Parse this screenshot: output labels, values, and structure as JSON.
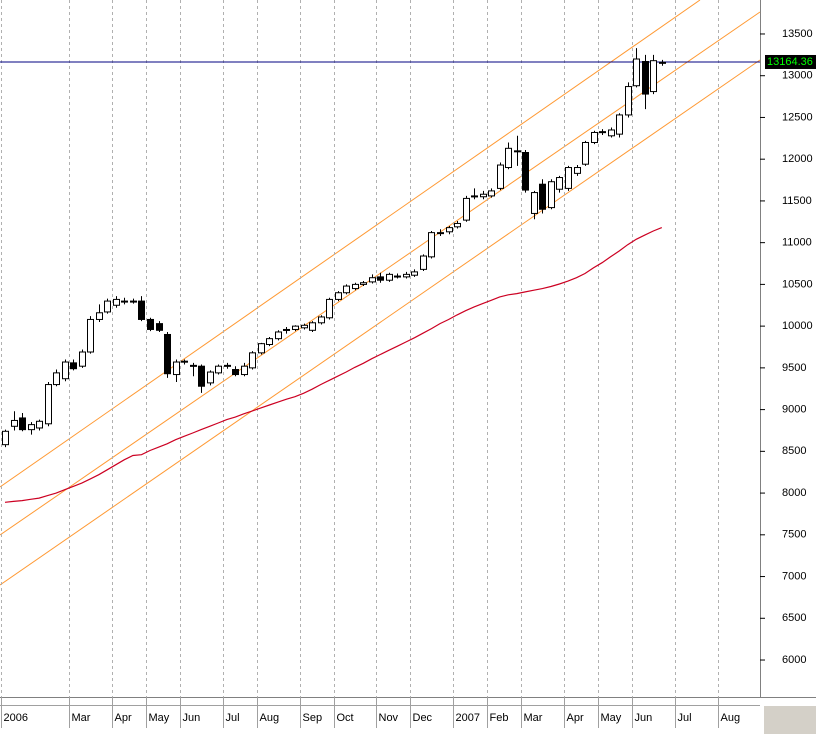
{
  "chart_data": {
    "type": "candlestick",
    "categories": [
      "2006",
      null,
      null,
      null,
      null,
      null,
      null,
      null,
      "Mar",
      null,
      null,
      null,
      null,
      "Apr",
      null,
      null,
      null,
      "May",
      null,
      null,
      null,
      "Jun",
      null,
      null,
      null,
      null,
      "Jul",
      null,
      null,
      null,
      "Aug",
      null,
      null,
      null,
      null,
      "Sep",
      null,
      null,
      null,
      "Oct",
      null,
      null,
      null,
      null,
      "Nov",
      null,
      null,
      null,
      "Dec",
      null,
      null,
      null,
      null,
      "2007",
      null,
      null,
      null,
      "Feb",
      null,
      null,
      null,
      "Mar",
      null,
      null,
      null,
      null,
      "Apr",
      null,
      null,
      null,
      "May",
      null,
      null,
      null,
      "Jun",
      null,
      null,
      null,
      null,
      "Jul",
      null,
      null,
      null,
      null,
      "Aug",
      null,
      null,
      null,
      null
    ],
    "open": [
      8580,
      8800,
      8900,
      8760,
      8780,
      8830,
      9300,
      9370,
      9560,
      9520,
      9690,
      10080,
      10170,
      10250,
      10290,
      10300,
      10300,
      10080,
      10030,
      9900,
      9420,
      9570,
      9520,
      9520,
      9320,
      9440,
      9520,
      9480,
      9420,
      9500,
      9680,
      9780,
      9850,
      9950,
      9960,
      9980,
      9950,
      10040,
      10100,
      10320,
      10400,
      10450,
      10500,
      10530,
      10590,
      10550,
      10600,
      10590,
      10610,
      10680,
      10830,
      11120,
      11130,
      11190,
      11270,
      11560,
      11550,
      11560,
      11650,
      11900,
      12100,
      12080,
      11350,
      11700,
      11420,
      11640,
      11650,
      11830,
      11940,
      12200,
      12330,
      12280,
      12300,
      12530,
      12880,
      13170,
      12810,
      13150,
      null,
      null,
      null,
      null,
      null,
      null,
      null,
      null,
      null,
      null,
      null
    ],
    "high": [
      8760,
      8980,
      8960,
      8850,
      8880,
      9330,
      9480,
      9600,
      9600,
      9720,
      10120,
      10260,
      10330,
      10360,
      10340,
      10330,
      10360,
      10100,
      10060,
      9930,
      9600,
      9600,
      9560,
      9540,
      9470,
      9540,
      9560,
      9520,
      9560,
      9700,
      9800,
      9870,
      9950,
      9990,
      10010,
      10030,
      10060,
      10130,
      10340,
      10420,
      10500,
      10520,
      10540,
      10620,
      10640,
      10640,
      10630,
      10650,
      10680,
      10860,
      11140,
      11160,
      11200,
      11260,
      11560,
      11650,
      11620,
      11650,
      11960,
      12200,
      12280,
      12110,
      11620,
      11760,
      11760,
      11800,
      11920,
      11930,
      12220,
      12340,
      12360,
      12380,
      12550,
      12920,
      13330,
      13250,
      13250,
      13190,
      null,
      null,
      null,
      null,
      null,
      null,
      null,
      null,
      null,
      null,
      null
    ],
    "low": [
      8550,
      8750,
      8740,
      8700,
      8750,
      8800,
      9280,
      9340,
      9470,
      9500,
      9670,
      10050,
      10150,
      10220,
      10260,
      10270,
      10060,
      9940,
      9930,
      9380,
      9330,
      9540,
      9400,
      9200,
      9290,
      9420,
      9490,
      9400,
      9400,
      9480,
      9660,
      9760,
      9830,
      9910,
      9940,
      9960,
      9930,
      10020,
      10080,
      10300,
      10380,
      10430,
      10480,
      10510,
      10520,
      10530,
      10570,
      10570,
      10590,
      10660,
      10810,
      11080,
      11100,
      11170,
      11250,
      11520,
      11520,
      11540,
      11630,
      11880,
      11920,
      11600,
      11280,
      11350,
      11400,
      11600,
      11620,
      11800,
      11920,
      12180,
      12290,
      12260,
      12260,
      12500,
      12860,
      12600,
      12780,
      13120,
      null,
      null,
      null,
      null,
      null,
      null,
      null,
      null,
      null,
      null,
      null
    ],
    "close": [
      8740,
      8870,
      8760,
      8820,
      8860,
      9300,
      9440,
      9570,
      9490,
      9690,
      10080,
      10160,
      10300,
      10320,
      10300,
      10300,
      10080,
      9960,
      9950,
      9430,
      9570,
      9580,
      9530,
      9280,
      9450,
      9520,
      9530,
      9420,
      9520,
      9680,
      9790,
      9850,
      9930,
      9960,
      10000,
      10010,
      10040,
      10110,
      10320,
      10400,
      10480,
      10500,
      10520,
      10580,
      10550,
      10620,
      10600,
      10620,
      10650,
      10840,
      11120,
      11120,
      11180,
      11230,
      11530,
      11560,
      11580,
      11620,
      11930,
      12130,
      12100,
      11630,
      11600,
      11400,
      11730,
      11780,
      11900,
      11900,
      12200,
      12320,
      12330,
      12350,
      12530,
      12870,
      13200,
      12780,
      13180,
      13160,
      null,
      null,
      null,
      null,
      null,
      null,
      null,
      null,
      null,
      null,
      null
    ],
    "ma": {
      "color": "#cc0022",
      "values": [
        7890,
        7900,
        7910,
        7925,
        7940,
        7970,
        8000,
        8040,
        8080,
        8120,
        8170,
        8220,
        8280,
        8340,
        8400,
        8450,
        8460,
        8510,
        8550,
        8590,
        8640,
        8680,
        8720,
        8760,
        8800,
        8840,
        8880,
        8910,
        8950,
        8985,
        9020,
        9055,
        9090,
        9125,
        9155,
        9195,
        9245,
        9300,
        9350,
        9400,
        9450,
        9505,
        9555,
        9610,
        9660,
        9710,
        9760,
        9810,
        9860,
        9915,
        9970,
        10030,
        10080,
        10135,
        10185,
        10230,
        10270,
        10310,
        10350,
        10375,
        10390,
        10410,
        10430,
        10450,
        10475,
        10505,
        10540,
        10580,
        10630,
        10700,
        10760,
        10830,
        10900,
        10975,
        11040,
        11090,
        11140,
        11180,
        null,
        null,
        null,
        null,
        null,
        null,
        null,
        null,
        null,
        null,
        null
      ]
    },
    "last_value": 13164.36,
    "last_color": "#000080",
    "up_color": "#ffffff",
    "down_color": "#000000",
    "ylim": [
      5557,
      13907
    ],
    "yticks": [
      6000,
      6500,
      7000,
      7500,
      8000,
      8500,
      9000,
      9500,
      10000,
      10500,
      11000,
      11500,
      12000,
      12500,
      13000,
      13500
    ],
    "grid": true
  }
}
